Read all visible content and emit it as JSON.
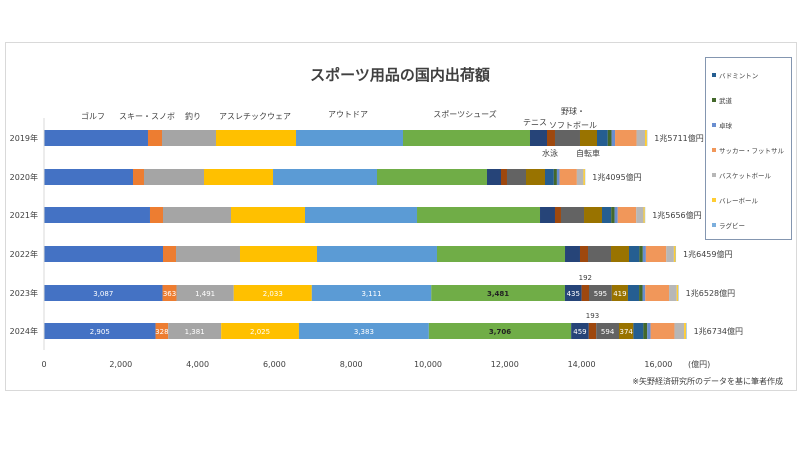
{
  "chart_data": {
    "type": "bar",
    "orientation": "horizontal-stacked",
    "title": "スポーツ用品の国内出荷額",
    "unit_label": "(億円)",
    "footnote": "※矢野経済研究所のデータを基に筆者作成",
    "xlim": [
      0,
      17000
    ],
    "xticks": [
      "0",
      "2,000",
      "4,000",
      "6,000",
      "8,000",
      "10,000",
      "12,000",
      "14,000",
      "16,000"
    ],
    "xtick_values": [
      0,
      2000,
      4000,
      6000,
      8000,
      10000,
      12000,
      14000,
      16000
    ],
    "grid": false,
    "legend_position": "right",
    "categories": [
      "2019年",
      "2020年",
      "2021年",
      "2022年",
      "2023年",
      "2024年"
    ],
    "totals": [
      "1兆5711億円",
      "1兆4095億円",
      "1兆5656億円",
      "1兆6459億円",
      "1兆6528億円",
      "1兆6734億円"
    ],
    "series": [
      {
        "name": "ゴルフ",
        "color": "#4472C4",
        "values": [
          2708,
          2318,
          2760,
          3099,
          3087,
          2905
        ],
        "labels": [
          null,
          null,
          null,
          null,
          "3,087",
          "2,905"
        ]
      },
      {
        "name": "スキー・スノボ",
        "color": "#ED7D31",
        "values": [
          365,
          286,
          339,
          339,
          363,
          328
        ],
        "labels": [
          null,
          null,
          null,
          null,
          "363",
          "328"
        ]
      },
      {
        "name": "釣り",
        "color": "#A5A5A5",
        "values": [
          1406,
          1563,
          1771,
          1666,
          1491,
          1381
        ],
        "labels": [
          null,
          null,
          null,
          null,
          "1,491",
          "1,381"
        ]
      },
      {
        "name": "アスレチックウェア",
        "color": "#FFC000",
        "values": [
          2084,
          1797,
          1927,
          2005,
          2033,
          2025
        ],
        "labels": [
          null,
          null,
          null,
          null,
          "2,033",
          "2,025"
        ]
      },
      {
        "name": "アウトドア",
        "color": "#5B9BD5",
        "values": [
          2786,
          2708,
          2917,
          3125,
          3111,
          3383
        ],
        "labels": [
          null,
          null,
          null,
          null,
          "3,111",
          "3,383"
        ]
      },
      {
        "name": "スポーツシューズ",
        "color": "#70AD47",
        "values": [
          3307,
          2864,
          3203,
          3334,
          3481,
          3706
        ],
        "labels": [
          null,
          null,
          null,
          null,
          "3,481",
          "3,706"
        ]
      },
      {
        "name": "テニス",
        "color": "#264478",
        "values": [
          443,
          365,
          390,
          390,
          435,
          459
        ],
        "labels": [
          null,
          null,
          null,
          null,
          "435",
          "459"
        ]
      },
      {
        "name": "水泳",
        "color": "#9E480E",
        "values": [
          208,
          156,
          156,
          209,
          192,
          193
        ],
        "labels": [
          null,
          null,
          null,
          null,
          "192",
          "193"
        ]
      },
      {
        "name": "野球・ソフトボール",
        "color": "#636363",
        "values": [
          651,
          495,
          600,
          599,
          595,
          594
        ],
        "labels": [
          null,
          null,
          null,
          null,
          "595",
          "594"
        ]
      },
      {
        "name": "自転車",
        "color": "#997300",
        "values": [
          443,
          495,
          468,
          468,
          419,
          374
        ],
        "labels": [
          null,
          null,
          null,
          null,
          "419",
          "374"
        ]
      },
      {
        "name": "バドミントン",
        "color": "#255E91",
        "values": [
          280,
          230,
          240,
          270,
          290,
          260
        ]
      },
      {
        "name": "武道",
        "color": "#43682B",
        "values": [
          100,
          80,
          90,
          90,
          90,
          100
        ]
      },
      {
        "name": "卓球",
        "color": "#698ED0",
        "values": [
          90,
          70,
          80,
          80,
          70,
          90
        ]
      },
      {
        "name": "サッカー・フットサル",
        "color": "#F1975A",
        "values": [
          560,
          450,
          480,
          530,
          620,
          620
        ]
      },
      {
        "name": "バスケットボール",
        "color": "#B7B7B7",
        "values": [
          220,
          170,
          190,
          200,
          200,
          250
        ]
      },
      {
        "name": "バレーボール",
        "color": "#FFCD33",
        "values": [
          50,
          40,
          35,
          45,
          40,
          50
        ]
      },
      {
        "name": "ラグビー",
        "color": "#7CAFDD",
        "values": [
          10,
          8,
          10,
          10,
          11,
          16
        ]
      }
    ],
    "category_labels_2019": [
      {
        "text": "ゴルフ"
      },
      {
        "text": "スキー・スノボ"
      },
      {
        "text": "釣り"
      },
      {
        "text": "アスレチックウェア"
      },
      {
        "text": "アウトドア"
      },
      {
        "text": "スポーツシューズ"
      },
      {
        "text": "テニス"
      },
      {
        "text": "野球・"
      },
      {
        "text": "ソフトボール"
      },
      {
        "text": "水泳"
      },
      {
        "text": "自転車"
      }
    ],
    "legend": [
      "バドミントン",
      "武道",
      "卓球",
      "サッカー・フットサル",
      "バスケットボール",
      "バレーボール",
      "ラグビー"
    ]
  }
}
